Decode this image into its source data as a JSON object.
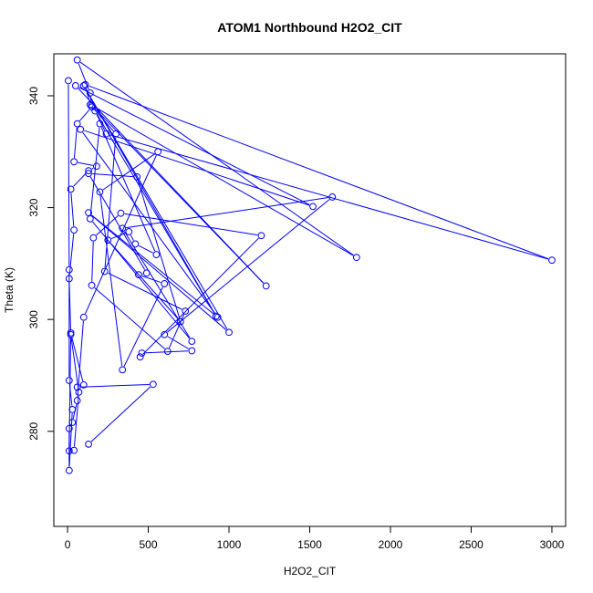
{
  "chart_data": {
    "type": "line",
    "title": "ATOM1 Northbound H2O2_CIT",
    "xlabel": "H2O2_CIT",
    "ylabel": "Theta (K)",
    "xlim": [
      -85,
      3085
    ],
    "ylim": [
      263,
      347.5
    ],
    "xticks": [
      0,
      500,
      1000,
      1500,
      2000,
      2500,
      3000
    ],
    "yticks": [
      280,
      300,
      320,
      340
    ],
    "x_tick_labels": [
      "0",
      "500",
      "1000",
      "1500",
      "2000",
      "2500",
      "3000"
    ],
    "y_tick_labels": [
      "280",
      "300",
      "320",
      "340"
    ],
    "grid": false,
    "legend": "none",
    "series_color": "#0000ff",
    "marker": "open-circle",
    "series": [
      {
        "points": [
          [
            130,
            277.7
          ],
          [
            530,
            288.4
          ],
          [
            60,
            287.9
          ],
          [
            100,
            288.3
          ],
          [
            20,
            297.6
          ],
          [
            10,
            276.5
          ],
          [
            40,
            276.6
          ],
          [
            70,
            287.0
          ],
          [
            20,
            297.3
          ],
          [
            10,
            307.3
          ],
          [
            40,
            316.0
          ],
          [
            20,
            323.3
          ],
          [
            130,
            326.6
          ],
          [
            180,
            327.4
          ],
          [
            40,
            328.2
          ],
          [
            60,
            335.0
          ],
          [
            150,
            338.0
          ],
          [
            140,
            340.5
          ],
          [
            60,
            346.4
          ],
          [
            1790,
            311.1
          ],
          [
            150,
            338.3
          ],
          [
            1230,
            306.0
          ],
          [
            50,
            341.8
          ],
          [
            1520,
            320.2
          ],
          [
            80,
            334.0
          ],
          [
            930,
            300.4
          ],
          [
            130,
            319.1
          ],
          [
            1000,
            297.7
          ],
          [
            100,
            341.8
          ],
          [
            920,
            300.6
          ],
          [
            170,
            337.3
          ],
          [
            240,
            333.2
          ],
          [
            3000,
            310.6
          ],
          [
            110,
            342.0
          ],
          [
            140,
            338.4
          ],
          [
            300,
            333.2
          ],
          [
            230,
            308.6
          ],
          [
            730,
            301.5
          ],
          [
            620,
            294.3
          ],
          [
            150,
            306.1
          ],
          [
            160,
            314.6
          ],
          [
            330,
            319.0
          ],
          [
            1200,
            315.0
          ],
          [
            450,
            293.3
          ],
          [
            460,
            294.0
          ],
          [
            770,
            294.4
          ],
          [
            600,
            297.3
          ],
          [
            1640,
            321.9
          ],
          [
            340,
            316.3
          ],
          [
            770,
            296.1
          ],
          [
            140,
            318.0
          ],
          [
            200,
            335.0
          ],
          [
            550,
            311.6
          ],
          [
            420,
            313.5
          ],
          [
            380,
            315.7
          ],
          [
            250,
            314.2
          ],
          [
            700,
            299.6
          ],
          [
            430,
            325.5
          ],
          [
            130,
            326.1
          ],
          [
            490,
            308.3
          ],
          [
            440,
            308.0
          ],
          [
            600,
            306.4
          ],
          [
            340,
            291.0
          ],
          [
            200,
            322.8
          ],
          [
            560,
            330.0
          ],
          [
            100,
            300.4
          ],
          [
            60,
            285.5
          ],
          [
            30,
            281.6
          ],
          [
            10,
            280.5
          ],
          [
            10,
            273.0
          ],
          [
            30,
            283.9
          ],
          [
            10,
            289.1
          ],
          [
            10,
            308.9
          ],
          [
            5,
            342.7
          ]
        ]
      }
    ]
  }
}
